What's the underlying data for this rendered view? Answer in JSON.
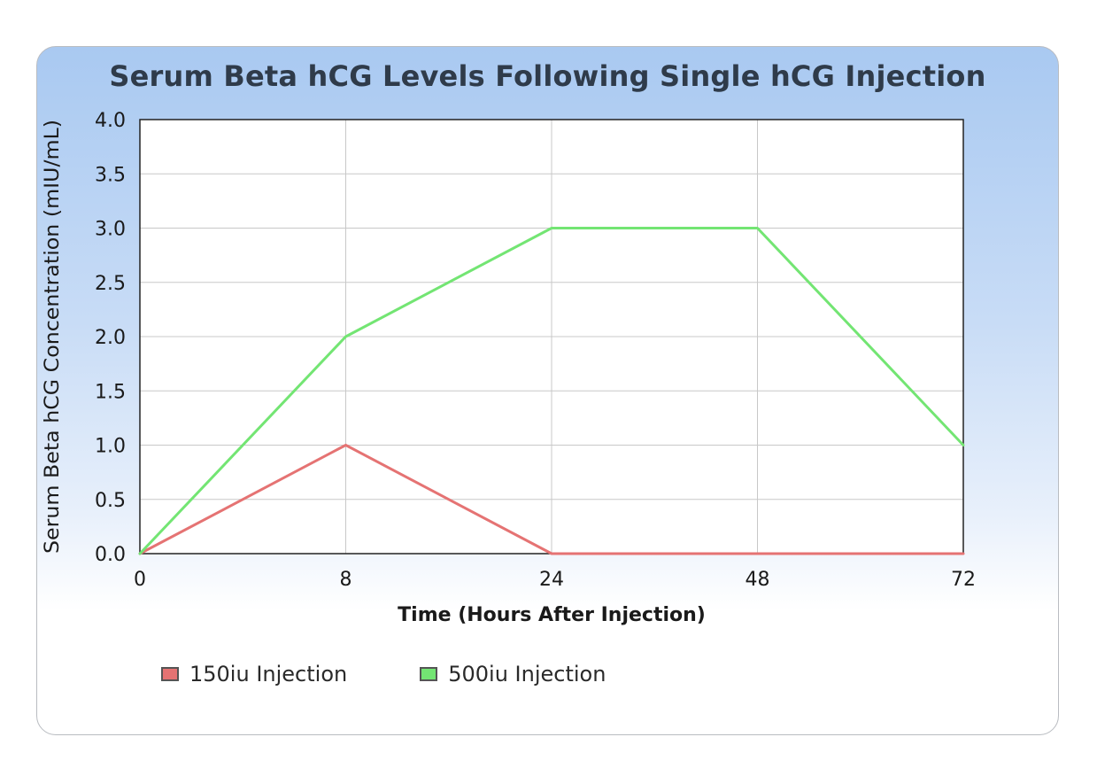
{
  "chart_data": {
    "type": "line",
    "title": "Serum Beta hCG Levels Following Single hCG Injection",
    "xlabel": "Time (Hours After Injection)",
    "ylabel": "Serum Beta hCG Concentration (mIU/mL)",
    "categories": [
      "0",
      "8",
      "24",
      "48",
      "72"
    ],
    "yticks": [
      "0.0",
      "0.5",
      "1.0",
      "1.5",
      "2.0",
      "2.5",
      "3.0",
      "3.5",
      "4.0"
    ],
    "ylim": [
      0,
      4
    ],
    "grid": true,
    "legend_position": "bottom",
    "series": [
      {
        "name": "150iu Injection",
        "color": "#e57373",
        "values": [
          0,
          1.0,
          0,
          0,
          0
        ]
      },
      {
        "name": "500iu Injection",
        "color": "#73e573",
        "values": [
          0,
          2.0,
          3.0,
          3.0,
          1.0
        ]
      }
    ]
  }
}
